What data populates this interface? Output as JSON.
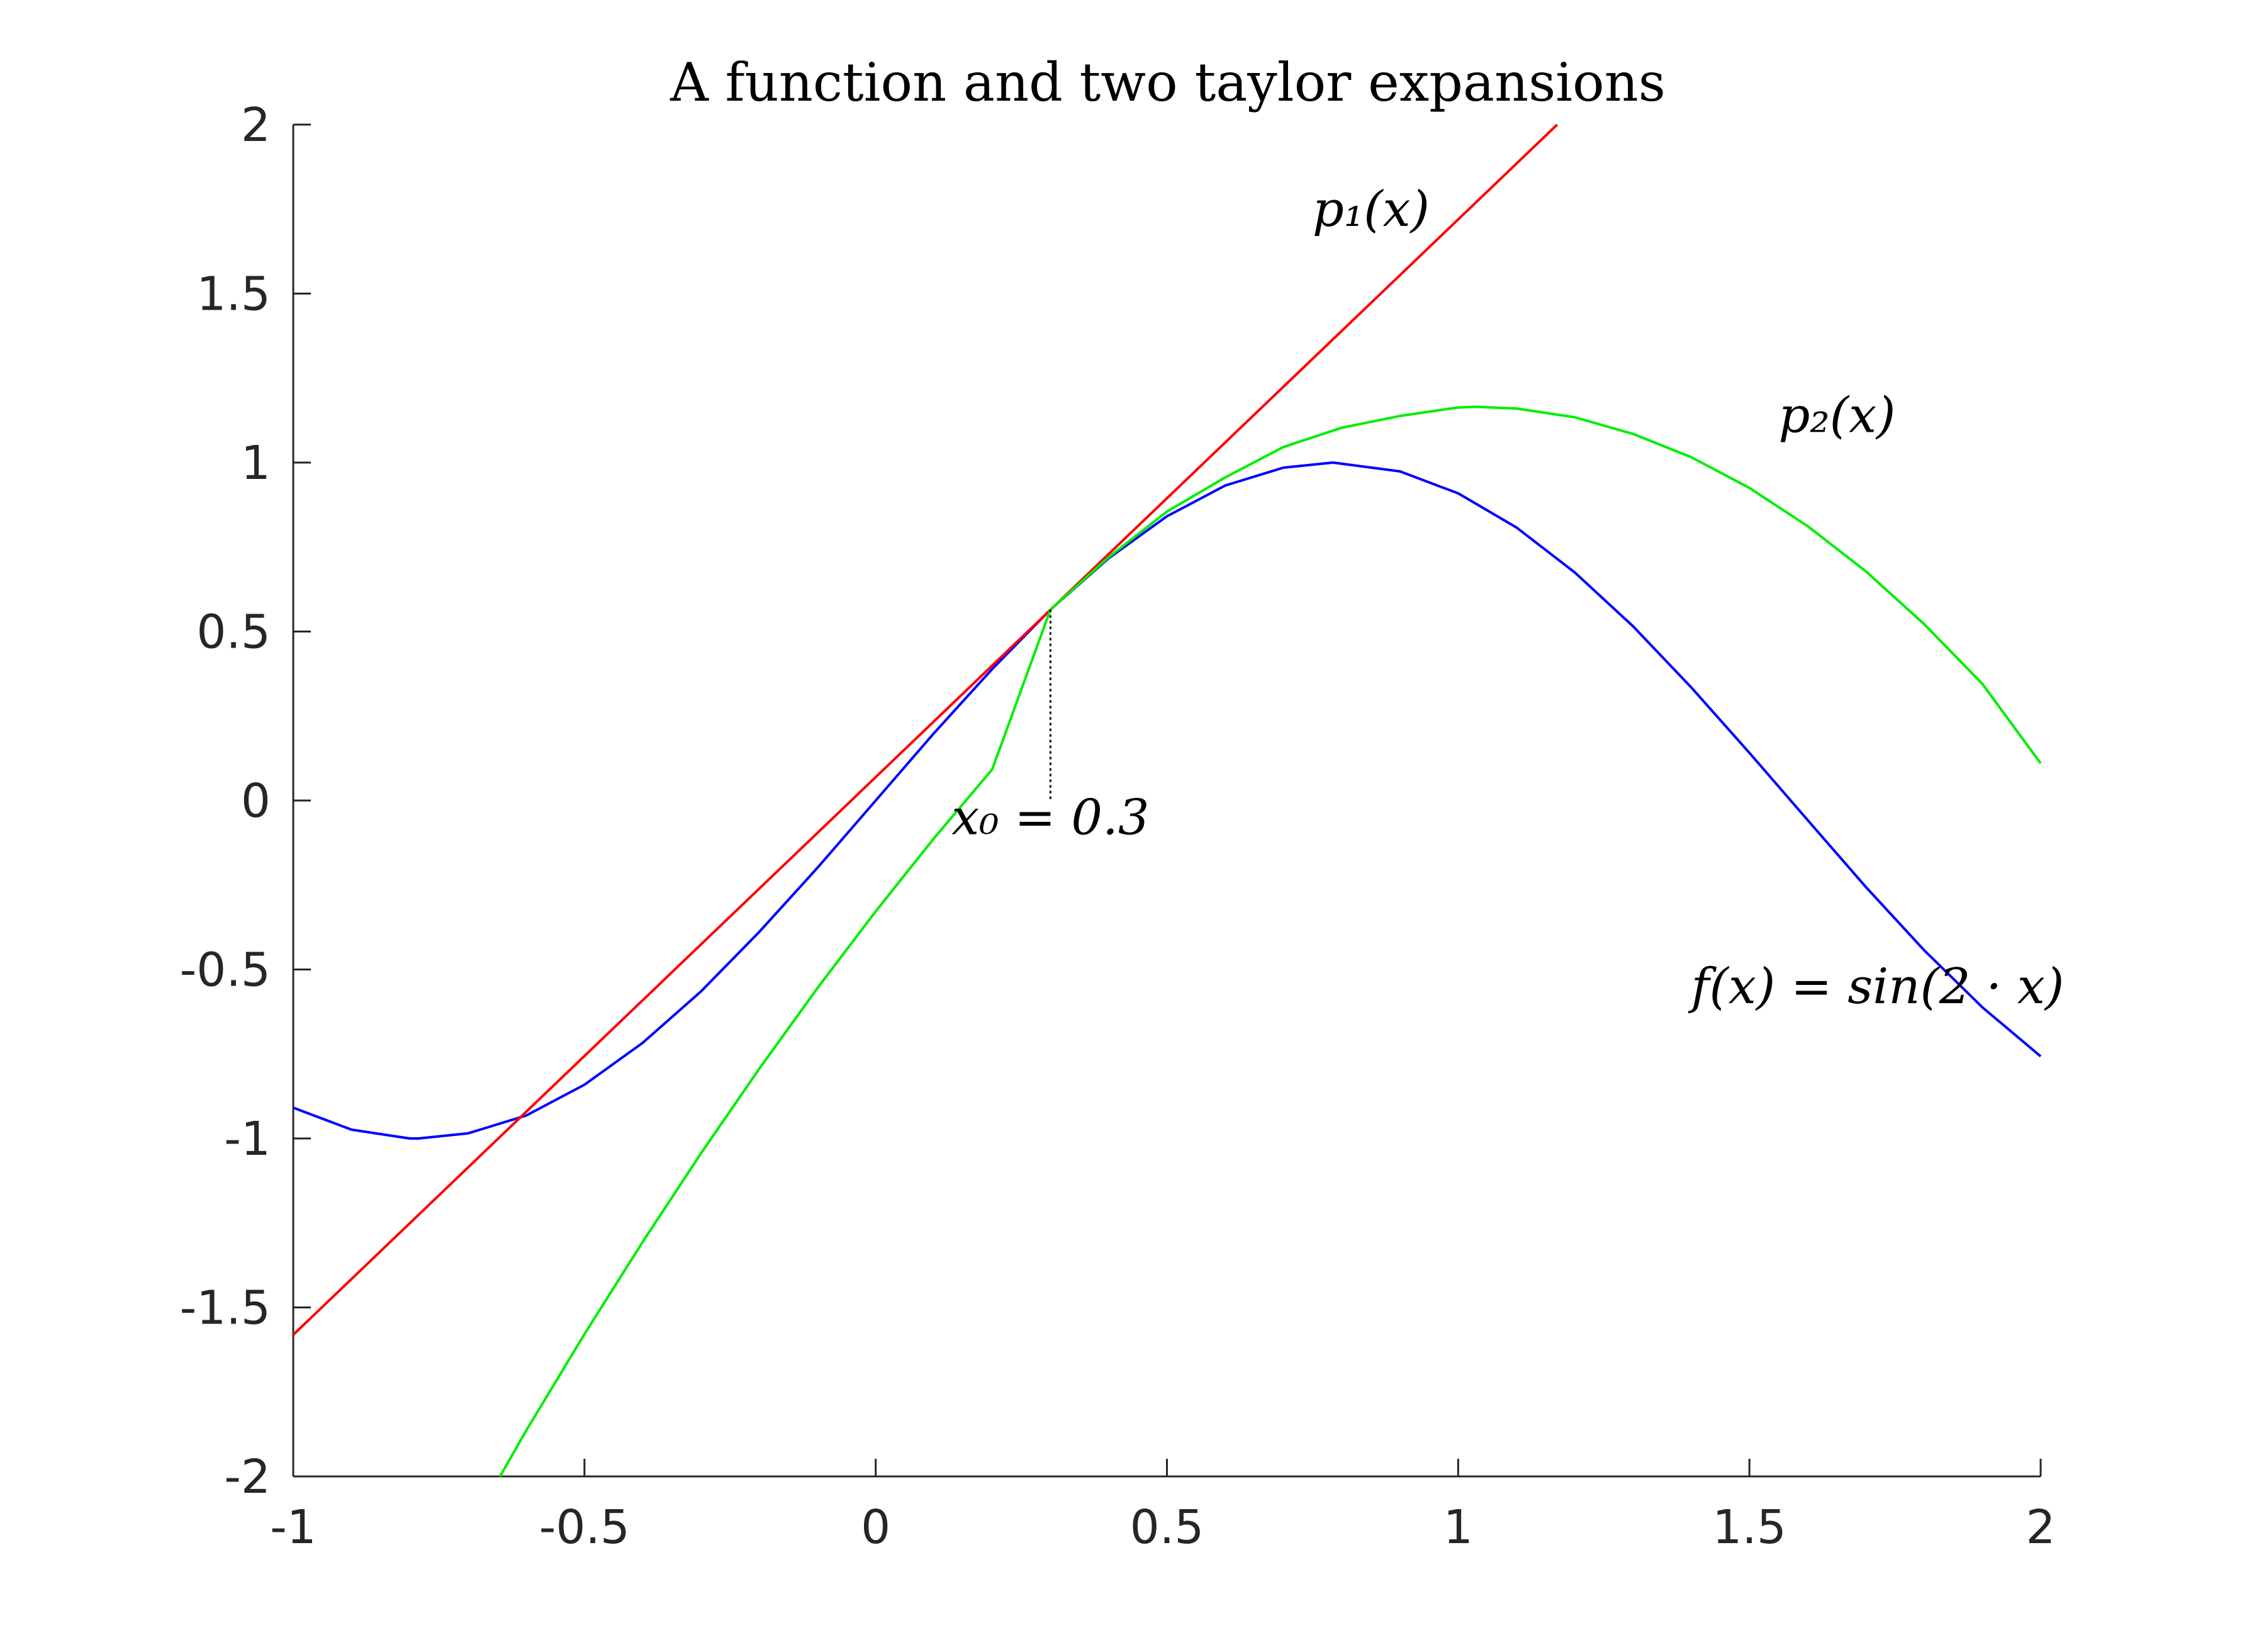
{
  "chart_data": {
    "type": "line",
    "title": "A function and two taylor expansions",
    "xlim": [
      -1,
      2
    ],
    "ylim": [
      -2,
      2
    ],
    "x_ticks": [
      -1,
      -0.5,
      0,
      0.5,
      1,
      1.5,
      2
    ],
    "x_tick_labels": [
      "-1",
      "-0.5",
      "0",
      "0.5",
      "1",
      "1.5",
      "2"
    ],
    "y_ticks": [
      -2,
      -1.5,
      -1,
      -0.5,
      0,
      0.5,
      1,
      1.5,
      2
    ],
    "y_tick_labels": [
      "-2",
      "-1.5",
      "-1",
      "-0.5",
      "0",
      "0.5",
      "1",
      "1.5",
      "2"
    ],
    "grid": false,
    "series": [
      {
        "color": "#0000ff",
        "x": [
          -1,
          -0.9,
          -0.8,
          -0.785,
          -0.7,
          -0.6,
          -0.5,
          -0.4,
          -0.3,
          -0.2,
          -0.1,
          0,
          0.1,
          0.2,
          0.3,
          0.4,
          0.5,
          0.6,
          0.7,
          0.785,
          0.9,
          1.0,
          1.1,
          1.2,
          1.3,
          1.4,
          1.5,
          1.6,
          1.7,
          1.8,
          1.9,
          2.0
        ],
        "y": [
          -0.909,
          -0.974,
          -1.0,
          -1.0,
          -0.985,
          -0.932,
          -0.841,
          -0.717,
          -0.565,
          -0.389,
          -0.199,
          0.0,
          0.199,
          0.389,
          0.565,
          0.717,
          0.841,
          0.932,
          0.985,
          1.0,
          0.974,
          0.909,
          0.808,
          0.675,
          0.516,
          0.335,
          0.141,
          -0.058,
          -0.256,
          -0.443,
          -0.612,
          -0.757
        ]
      },
      {
        "color": "#ff0000",
        "x": [
          -1,
          1.17
        ],
        "y": [
          -1.581,
          2.0
        ]
      },
      {
        "color": "#00ee00",
        "x": [
          -0.645,
          -0.6,
          -0.5,
          -0.4,
          -0.3,
          -0.2,
          -0.1,
          0,
          0.1,
          0.2,
          0.3,
          0.4,
          0.5,
          0.6,
          0.7,
          0.8,
          0.9,
          1.0,
          1.03,
          1.1,
          1.2,
          1.3,
          1.4,
          1.5,
          1.6,
          1.7,
          1.8,
          1.9,
          2.0
        ],
        "y": [
          -2.0,
          -1.864,
          -1.579,
          -1.306,
          -1.044,
          -0.794,
          -0.555,
          -0.328,
          -0.112,
          0.092,
          0.565,
          0.72,
          0.855,
          0.956,
          1.046,
          1.103,
          1.138,
          1.163,
          1.165,
          1.16,
          1.134,
          1.085,
          1.016,
          0.925,
          0.812,
          0.678,
          0.522,
          0.345,
          0.11
        ]
      }
    ],
    "x0_marker": {
      "x": 0.3,
      "y": 0.565
    },
    "annotations": [
      {
        "text": "p₁(x)",
        "x": 0.75,
        "y": 1.7
      },
      {
        "text": "p₂(x)",
        "x": 1.55,
        "y": 1.09
      },
      {
        "text": "x₀ = 0.3",
        "x": 0.3,
        "y": -0.1
      },
      {
        "text": "f(x) = sin(2 · x)",
        "x": 1.4,
        "y": -0.6
      }
    ]
  }
}
